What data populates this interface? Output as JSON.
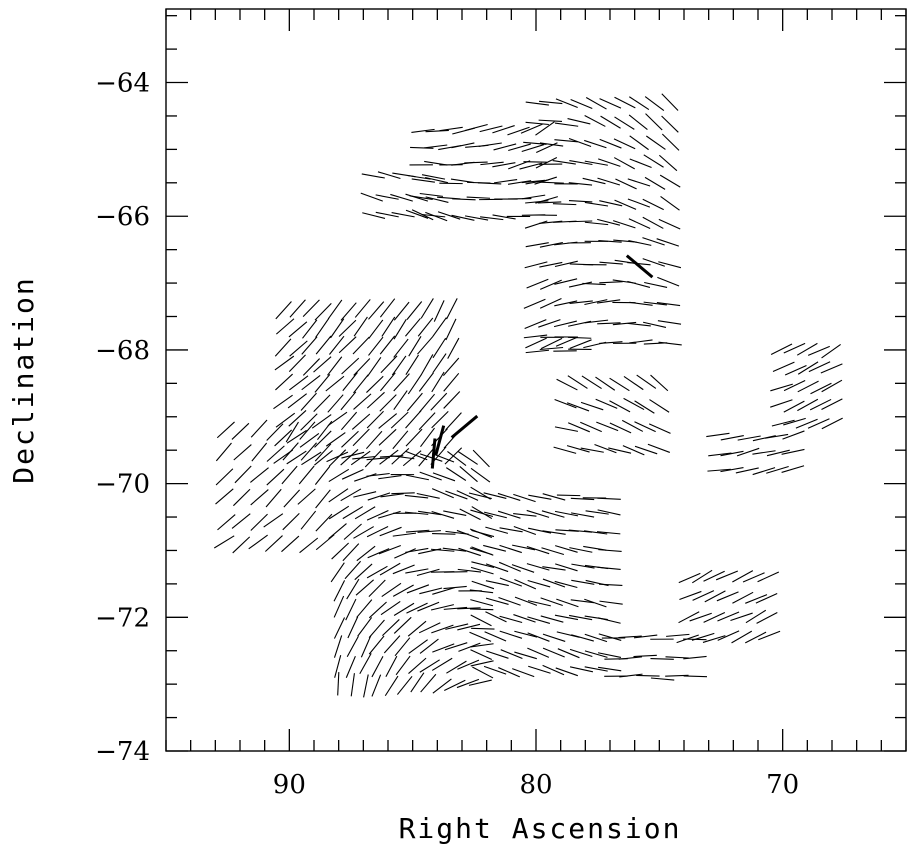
{
  "chart_data": {
    "type": "vector-field",
    "xlabel": "Right Ascension",
    "ylabel": "Declination",
    "xlim": [
      95,
      65
    ],
    "ylim": [
      -74,
      -62.9
    ],
    "x_reversed": true,
    "x_ticks": [
      90,
      80,
      70
    ],
    "y_ticks": [
      -64,
      -66,
      -68,
      -70,
      -72,
      -74
    ],
    "x_minor_step": 1,
    "y_minor_step": 0.5,
    "grid": false,
    "legend": "none",
    "line_color": "#000000",
    "regions": [
      {
        "ra_range": [
          80,
          74.6
        ],
        "dec_range": [
          -67.9,
          -64.3
        ],
        "rows": 13,
        "cols": 10,
        "angle_start": 30,
        "angle_end": -45,
        "length": 0.35
      },
      {
        "ra_range": [
          84.6,
          79.6
        ],
        "dec_range": [
          -66.0,
          -64.7
        ],
        "rows": 6,
        "cols": 10,
        "angle_start": -20,
        "angle_end": 30,
        "length": 0.35
      },
      {
        "ra_range": [
          86.6,
          84.2
        ],
        "dec_range": [
          -66.0,
          -65.4
        ],
        "rows": 3,
        "cols": 5,
        "angle_start": -15,
        "angle_end": -10,
        "length": 0.35
      },
      {
        "ra_range": [
          90.2,
          83.4
        ],
        "dec_range": [
          -69.6,
          -67.4
        ],
        "rows": 9,
        "cols": 14,
        "angle_start": 35,
        "angle_end": 60,
        "length": 0.35
      },
      {
        "ra_range": [
          92.6,
          88.6
        ],
        "dec_range": [
          -70.9,
          -69.2
        ],
        "rows": 6,
        "cols": 7,
        "angle_start": 35,
        "angle_end": 55,
        "length": 0.35
      },
      {
        "ra_range": [
          88.0,
          82.2
        ],
        "dec_range": [
          -73.0,
          -69.6
        ],
        "rows": 13,
        "cols": 12,
        "angle_start": 85,
        "angle_end": -45,
        "length": 0.35
      },
      {
        "ra_range": [
          82.2,
          77.0
        ],
        "dec_range": [
          -72.8,
          -70.2
        ],
        "rows": 11,
        "cols": 10,
        "angle_start": -25,
        "angle_end": -5,
        "length": 0.35
      },
      {
        "ra_range": [
          76.8,
          73.6
        ],
        "dec_range": [
          -72.9,
          -72.3
        ],
        "rows": 3,
        "cols": 6,
        "angle_start": 0,
        "angle_end": 5,
        "length": 0.35
      },
      {
        "ra_range": [
          78.8,
          75.0
        ],
        "dec_range": [
          -69.5,
          -68.5
        ],
        "rows": 4,
        "cols": 8,
        "angle_start": -10,
        "angle_end": -40,
        "length": 0.35
      },
      {
        "ra_range": [
          80.0,
          78.2
        ],
        "dec_range": [
          -68.0,
          -67.8
        ],
        "rows": 2,
        "cols": 4,
        "angle_start": 0,
        "angle_end": 0,
        "length": 0.35
      },
      {
        "ra_range": [
          73.8,
          70.6
        ],
        "dec_range": [
          -72.3,
          -71.4
        ],
        "rows": 4,
        "cols": 7,
        "angle_start": 20,
        "angle_end": 30,
        "length": 0.35
      },
      {
        "ra_range": [
          72.6,
          69.6
        ],
        "dec_range": [
          -69.8,
          -69.3
        ],
        "rows": 3,
        "cols": 6,
        "angle_start": 10,
        "angle_end": 15,
        "length": 0.35
      },
      {
        "ra_range": [
          70.0,
          68.0
        ],
        "dec_range": [
          -69.1,
          -68.0
        ],
        "rows": 5,
        "cols": 5,
        "angle_start": 20,
        "angle_end": 30,
        "length": 0.35
      }
    ],
    "highlighted_vectors": [
      {
        "ra": 75.8,
        "dec": -66.75,
        "angle": -40,
        "length": 0.5
      },
      {
        "ra": 84.15,
        "dec": -69.55,
        "angle": 85,
        "length": 0.45
      },
      {
        "ra": 83.9,
        "dec": -69.35,
        "angle": 75,
        "length": 0.45
      },
      {
        "ra": 82.9,
        "dec": -69.15,
        "angle": 40,
        "length": 0.5
      }
    ]
  }
}
